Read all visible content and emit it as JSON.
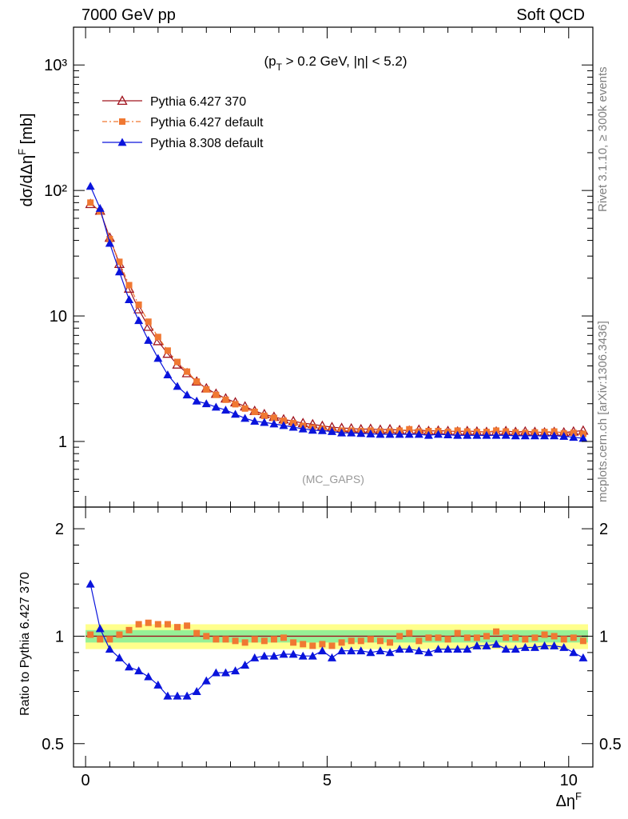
{
  "header": {
    "left": "7000 GeV pp",
    "right": "Soft QCD"
  },
  "side": {
    "rivet": "Rivet 3.1.10, ≥ 300k events",
    "mcplots": "mcplots.cern.ch [arXiv:1306.3436]"
  },
  "chart_data": [
    {
      "type": "line",
      "panel": "main",
      "ylabel": "dσ/dΔηF [mb]",
      "ylabel_main": "dσ/dΔη",
      "ylabel_sup": "F",
      "ylabel_tail": " [mb]",
      "yscale": "log",
      "ylim": [
        0.3,
        2000
      ],
      "xlim": [
        -0.25,
        10.5
      ],
      "y_ticks": [
        "1",
        "10",
        "10²",
        "10³"
      ],
      "x_ticks": [
        "0",
        "5",
        "10"
      ],
      "cut_label": "(pT > 0.2 GeV, |η| < 5.2)",
      "cut": {
        "open": "(p",
        "sub": "T",
        "rest": " > 0.2 GeV, |η| < 5.2)"
      },
      "watermark": "(MC_GAPS)",
      "legend_position": "top-left",
      "x": [
        0.1,
        0.3,
        0.5,
        0.7,
        0.9,
        1.1,
        1.3,
        1.5,
        1.7,
        1.9,
        2.1,
        2.3,
        2.5,
        2.7,
        2.9,
        3.1,
        3.3,
        3.5,
        3.7,
        3.9,
        4.1,
        4.3,
        4.5,
        4.7,
        4.9,
        5.1,
        5.3,
        5.5,
        5.7,
        5.9,
        6.1,
        6.3,
        6.5,
        6.7,
        6.9,
        7.1,
        7.3,
        7.5,
        7.7,
        7.9,
        8.1,
        8.3,
        8.5,
        8.7,
        8.9,
        9.1,
        9.3,
        9.5,
        9.7,
        9.9,
        10.1,
        10.3
      ],
      "series": [
        {
          "name": "Pythia 6.427 370",
          "color": "#a0141e",
          "marker": "open-triangle",
          "values": [
            78,
            69,
            42,
            26,
            16.5,
            11.3,
            8.2,
            6.3,
            5.0,
            4.1,
            3.5,
            3.0,
            2.65,
            2.4,
            2.2,
            2.05,
            1.9,
            1.75,
            1.65,
            1.57,
            1.5,
            1.45,
            1.4,
            1.37,
            1.33,
            1.3,
            1.28,
            1.27,
            1.25,
            1.26,
            1.24,
            1.25,
            1.23,
            1.22,
            1.24,
            1.21,
            1.22,
            1.21,
            1.2,
            1.21,
            1.2,
            1.19,
            1.2,
            1.21,
            1.19,
            1.2,
            1.19,
            1.18,
            1.19,
            1.18,
            1.2,
            1.22
          ]
        },
        {
          "name": "Pythia 6.427 default",
          "color": "#f07832",
          "marker": "square",
          "values": [
            80,
            68,
            41,
            27,
            17.6,
            12.3,
            9.0,
            6.8,
            5.3,
            4.3,
            3.6,
            3.0,
            2.6,
            2.35,
            2.15,
            1.98,
            1.83,
            1.72,
            1.6,
            1.54,
            1.46,
            1.4,
            1.33,
            1.29,
            1.26,
            1.22,
            1.22,
            1.22,
            1.21,
            1.22,
            1.2,
            1.2,
            1.22,
            1.25,
            1.2,
            1.21,
            1.21,
            1.19,
            1.22,
            1.2,
            1.19,
            1.19,
            1.22,
            1.2,
            1.18,
            1.17,
            1.18,
            1.19,
            1.2,
            1.16,
            1.17,
            1.15
          ]
        },
        {
          "name": "Pythia 8.308 default",
          "color": "#0a14dc",
          "marker": "triangle",
          "values": [
            108,
            72,
            38,
            22.5,
            13.5,
            9.2,
            6.4,
            4.6,
            3.4,
            2.75,
            2.35,
            2.1,
            2.0,
            1.88,
            1.78,
            1.65,
            1.53,
            1.45,
            1.42,
            1.38,
            1.34,
            1.3,
            1.26,
            1.23,
            1.22,
            1.2,
            1.17,
            1.17,
            1.16,
            1.15,
            1.14,
            1.14,
            1.14,
            1.14,
            1.14,
            1.12,
            1.14,
            1.13,
            1.12,
            1.12,
            1.12,
            1.12,
            1.12,
            1.12,
            1.11,
            1.11,
            1.11,
            1.11,
            1.11,
            1.1,
            1.08,
            1.06
          ]
        }
      ]
    },
    {
      "type": "line",
      "panel": "ratio",
      "ylabel": "Ratio to Pythia 6.427 370",
      "xlabel": "ΔηF",
      "xlabel_main": "Δη",
      "xlabel_sup": "F",
      "yscale": "log",
      "ylim": [
        0.43,
        2.3
      ],
      "y_ticks": [
        "0.5",
        "1",
        "2"
      ],
      "band_colors": {
        "outer": "#ffff8c",
        "inner": "#96f096"
      },
      "series": [
        {
          "name": "Pythia 6.427 default",
          "color": "#f07832",
          "marker": "square",
          "values": [
            1.01,
            0.98,
            0.98,
            1.01,
            1.04,
            1.08,
            1.09,
            1.08,
            1.08,
            1.06,
            1.07,
            1.02,
            1.0,
            0.98,
            0.98,
            0.97,
            0.96,
            0.98,
            0.97,
            0.98,
            0.99,
            0.96,
            0.95,
            0.94,
            0.95,
            0.94,
            0.96,
            0.97,
            0.97,
            0.98,
            0.97,
            0.96,
            1.0,
            1.02,
            0.97,
            0.99,
            0.99,
            0.98,
            1.02,
            0.99,
            0.99,
            1.0,
            1.03,
            0.99,
            0.99,
            0.98,
            0.99,
            1.01,
            1.0,
            0.98,
            0.99,
            0.97
          ]
        },
        {
          "name": "Pythia 8.308 default",
          "color": "#0a14dc",
          "marker": "triangle",
          "values": [
            1.4,
            1.05,
            0.92,
            0.87,
            0.82,
            0.8,
            0.77,
            0.73,
            0.68,
            0.68,
            0.68,
            0.7,
            0.75,
            0.79,
            0.79,
            0.8,
            0.83,
            0.87,
            0.88,
            0.88,
            0.89,
            0.89,
            0.88,
            0.88,
            0.91,
            0.87,
            0.91,
            0.91,
            0.91,
            0.9,
            0.91,
            0.9,
            0.92,
            0.92,
            0.91,
            0.9,
            0.92,
            0.92,
            0.92,
            0.92,
            0.94,
            0.94,
            0.95,
            0.92,
            0.92,
            0.93,
            0.93,
            0.94,
            0.94,
            0.93,
            0.9,
            0.87
          ]
        }
      ]
    }
  ]
}
